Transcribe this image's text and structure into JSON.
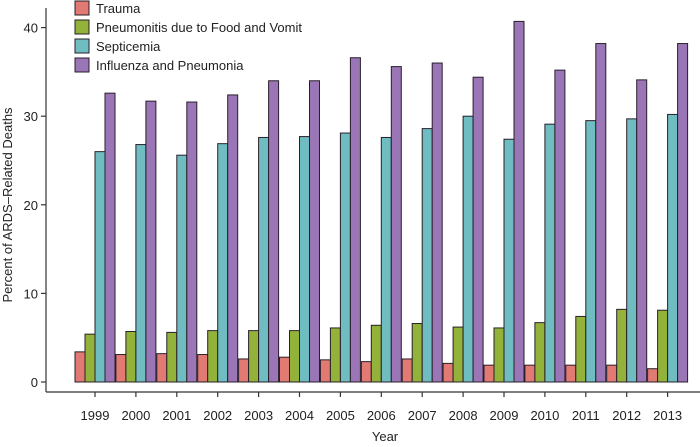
{
  "chart_data": {
    "type": "bar",
    "title": "",
    "xlabel": "Year",
    "ylabel": "Percent of ARDS–Related Deaths",
    "ylim": [
      0,
      42
    ],
    "yticks": [
      0,
      10,
      20,
      30,
      40
    ],
    "grid": false,
    "legend_position": "top-left",
    "categories": [
      "1999",
      "2000",
      "2001",
      "2002",
      "2003",
      "2004",
      "2005",
      "2006",
      "2007",
      "2008",
      "2009",
      "2010",
      "2011",
      "2012",
      "2013"
    ],
    "series": [
      {
        "name": "Trauma",
        "color": "#e07a73",
        "values": [
          3.4,
          3.1,
          3.2,
          3.1,
          2.6,
          2.8,
          2.5,
          2.3,
          2.6,
          2.1,
          1.9,
          1.9,
          1.9,
          1.9,
          1.5
        ]
      },
      {
        "name": "Pneumonitis due to Food and Vomit",
        "color": "#93b23a",
        "values": [
          5.4,
          5.7,
          5.6,
          5.8,
          5.8,
          5.8,
          6.1,
          6.4,
          6.6,
          6.2,
          6.1,
          6.7,
          7.4,
          8.2,
          8.1
        ]
      },
      {
        "name": "Septicemia",
        "color": "#6fbcc1",
        "values": [
          26.0,
          26.8,
          25.6,
          26.9,
          27.6,
          27.7,
          28.1,
          27.6,
          28.6,
          30.0,
          27.4,
          29.1,
          29.5,
          29.7,
          30.2
        ]
      },
      {
        "name": "Influenza and Pneumonia",
        "color": "#9a76b6",
        "values": [
          32.6,
          31.7,
          31.6,
          32.4,
          34.0,
          34.0,
          36.6,
          35.6,
          36.0,
          34.4,
          40.7,
          35.2,
          38.2,
          34.1,
          38.2
        ]
      }
    ]
  }
}
